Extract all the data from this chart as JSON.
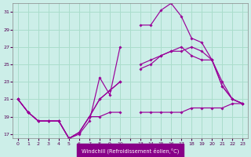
{
  "background_color": "#cceee8",
  "grid_color": "#aaddcc",
  "line_color": "#990099",
  "ylim": [
    16.5,
    32.0
  ],
  "yticks": [
    17,
    19,
    21,
    23,
    25,
    27,
    29,
    31
  ],
  "xlabel": "Windchill (Refroidissement éolien,°C)",
  "xlabel_bg": "#880088",
  "tick_labels": [
    "0",
    "1",
    "2",
    "3",
    "4",
    "5",
    "6",
    "7",
    "8",
    "9",
    "10",
    "",
    "13",
    "14",
    "15",
    "16",
    "17",
    "18",
    "19",
    "20",
    "21",
    "22",
    "23"
  ],
  "lines": [
    {
      "y": [
        21,
        19.5,
        18.5,
        18.5,
        18.5,
        16.5,
        17.0,
        18.5,
        23.5,
        21.5,
        27.0,
        null,
        29.5,
        29.5,
        31.2,
        32.0,
        30.5,
        28.0,
        27.5,
        25.5,
        22.5,
        21.0,
        20.5
      ]
    },
    {
      "y": [
        21,
        19.5,
        18.5,
        18.5,
        18.5,
        16.5,
        17.2,
        19.0,
        21.0,
        22.0,
        23.0,
        null,
        24.5,
        25.0,
        26.0,
        26.5,
        27.0,
        26.0,
        25.5,
        25.5,
        22.5,
        21.0,
        20.5
      ]
    },
    {
      "y": [
        21,
        19.5,
        18.5,
        18.5,
        18.5,
        16.5,
        17.2,
        19.0,
        21.0,
        22.0,
        23.0,
        null,
        25.0,
        25.5,
        26.0,
        26.5,
        26.5,
        27.0,
        26.5,
        25.5,
        23.0,
        21.0,
        20.5
      ]
    },
    {
      "y": [
        21,
        19.5,
        18.5,
        18.5,
        18.5,
        16.5,
        17.2,
        19.0,
        19.0,
        19.5,
        19.5,
        null,
        19.5,
        19.5,
        19.5,
        19.5,
        19.5,
        20.0,
        20.0,
        20.0,
        20.0,
        20.5,
        20.5
      ]
    }
  ]
}
